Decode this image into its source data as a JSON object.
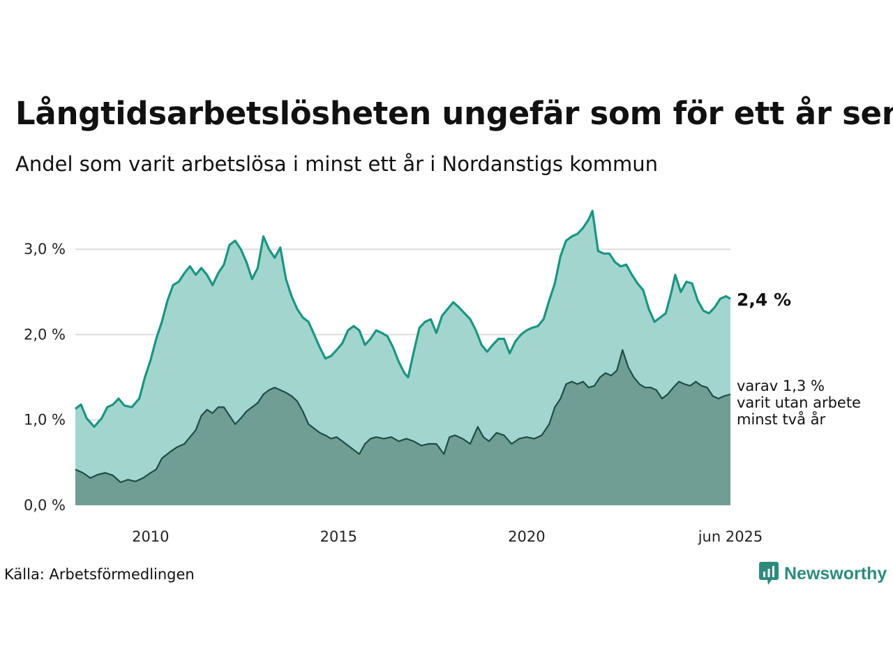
{
  "title": "Långtidsarbetslösheten ungefär som för ett år sen",
  "subtitle": "Andel som varit arbetslösa i minst ett år i Nordanstigs kommun",
  "source": "Källa: Arbetsförmedlingen",
  "brand": "Newsworthy",
  "colors": {
    "total_line": "#1a9580",
    "total_fill": "#a3d5cf",
    "two_year_line": "#1e4d44",
    "two_year_fill": "#6f9e95",
    "grid": "#dddddd",
    "brand": "#2e8b7c"
  },
  "chart_data": {
    "type": "area",
    "x_start": "2008-01",
    "x_end": "2025-06",
    "xlim": [
      2008.0,
      2025.42
    ],
    "ylim": [
      0,
      3.5
    ],
    "x_ticks": [
      {
        "x": 2010,
        "label": "2010"
      },
      {
        "x": 2015,
        "label": "2015"
      },
      {
        "x": 2020,
        "label": "2020"
      },
      {
        "x": 2025.42,
        "label": "jun 2025"
      }
    ],
    "y_ticks": [
      {
        "y": 0,
        "label": "0,0 %"
      },
      {
        "y": 1,
        "label": "1,0 %"
      },
      {
        "y": 2,
        "label": "2,0 %"
      },
      {
        "y": 3,
        "label": "3,0 %"
      }
    ],
    "grid": true,
    "series": [
      {
        "key": "total",
        "end_label": "2,4 %",
        "points": [
          [
            2008.0,
            1.13
          ],
          [
            2008.15,
            1.18
          ],
          [
            2008.3,
            1.02
          ],
          [
            2008.5,
            0.92
          ],
          [
            2008.7,
            1.02
          ],
          [
            2008.85,
            1.15
          ],
          [
            2009.0,
            1.18
          ],
          [
            2009.15,
            1.25
          ],
          [
            2009.3,
            1.17
          ],
          [
            2009.5,
            1.15
          ],
          [
            2009.7,
            1.25
          ],
          [
            2009.85,
            1.5
          ],
          [
            2010.0,
            1.7
          ],
          [
            2010.15,
            1.95
          ],
          [
            2010.3,
            2.15
          ],
          [
            2010.45,
            2.4
          ],
          [
            2010.6,
            2.58
          ],
          [
            2010.75,
            2.62
          ],
          [
            2010.9,
            2.72
          ],
          [
            2011.05,
            2.8
          ],
          [
            2011.2,
            2.7
          ],
          [
            2011.35,
            2.78
          ],
          [
            2011.5,
            2.7
          ],
          [
            2011.65,
            2.58
          ],
          [
            2011.8,
            2.72
          ],
          [
            2011.95,
            2.82
          ],
          [
            2012.1,
            3.05
          ],
          [
            2012.25,
            3.1
          ],
          [
            2012.4,
            3.0
          ],
          [
            2012.55,
            2.85
          ],
          [
            2012.7,
            2.65
          ],
          [
            2012.85,
            2.78
          ],
          [
            2013.0,
            3.15
          ],
          [
            2013.15,
            3.0
          ],
          [
            2013.3,
            2.9
          ],
          [
            2013.45,
            3.02
          ],
          [
            2013.6,
            2.65
          ],
          [
            2013.75,
            2.45
          ],
          [
            2013.9,
            2.3
          ],
          [
            2014.05,
            2.2
          ],
          [
            2014.2,
            2.15
          ],
          [
            2014.35,
            2.0
          ],
          [
            2014.5,
            1.85
          ],
          [
            2014.65,
            1.72
          ],
          [
            2014.8,
            1.75
          ],
          [
            2014.95,
            1.82
          ],
          [
            2015.1,
            1.9
          ],
          [
            2015.25,
            2.05
          ],
          [
            2015.4,
            2.1
          ],
          [
            2015.55,
            2.05
          ],
          [
            2015.7,
            1.88
          ],
          [
            2015.85,
            1.95
          ],
          [
            2016.0,
            2.05
          ],
          [
            2016.15,
            2.02
          ],
          [
            2016.3,
            1.98
          ],
          [
            2016.45,
            1.85
          ],
          [
            2016.6,
            1.68
          ],
          [
            2016.75,
            1.55
          ],
          [
            2016.85,
            1.5
          ],
          [
            2017.0,
            1.8
          ],
          [
            2017.15,
            2.08
          ],
          [
            2017.3,
            2.15
          ],
          [
            2017.45,
            2.18
          ],
          [
            2017.6,
            2.02
          ],
          [
            2017.75,
            2.22
          ],
          [
            2017.9,
            2.3
          ],
          [
            2018.05,
            2.38
          ],
          [
            2018.2,
            2.32
          ],
          [
            2018.35,
            2.25
          ],
          [
            2018.5,
            2.18
          ],
          [
            2018.65,
            2.05
          ],
          [
            2018.8,
            1.88
          ],
          [
            2018.95,
            1.8
          ],
          [
            2019.1,
            1.88
          ],
          [
            2019.25,
            1.95
          ],
          [
            2019.4,
            1.95
          ],
          [
            2019.55,
            1.78
          ],
          [
            2019.7,
            1.92
          ],
          [
            2019.85,
            2.0
          ],
          [
            2020.0,
            2.05
          ],
          [
            2020.15,
            2.08
          ],
          [
            2020.3,
            2.1
          ],
          [
            2020.45,
            2.18
          ],
          [
            2020.6,
            2.4
          ],
          [
            2020.75,
            2.6
          ],
          [
            2020.9,
            2.92
          ],
          [
            2021.05,
            3.1
          ],
          [
            2021.2,
            3.15
          ],
          [
            2021.35,
            3.18
          ],
          [
            2021.5,
            3.25
          ],
          [
            2021.65,
            3.35
          ],
          [
            2021.75,
            3.45
          ],
          [
            2021.9,
            2.98
          ],
          [
            2022.05,
            2.95
          ],
          [
            2022.2,
            2.95
          ],
          [
            2022.35,
            2.85
          ],
          [
            2022.5,
            2.8
          ],
          [
            2022.65,
            2.82
          ],
          [
            2022.8,
            2.7
          ],
          [
            2022.95,
            2.6
          ],
          [
            2023.1,
            2.52
          ],
          [
            2023.25,
            2.3
          ],
          [
            2023.4,
            2.15
          ],
          [
            2023.55,
            2.2
          ],
          [
            2023.7,
            2.25
          ],
          [
            2023.85,
            2.5
          ],
          [
            2023.95,
            2.7
          ],
          [
            2024.1,
            2.5
          ],
          [
            2024.25,
            2.62
          ],
          [
            2024.4,
            2.6
          ],
          [
            2024.55,
            2.4
          ],
          [
            2024.7,
            2.28
          ],
          [
            2024.85,
            2.25
          ],
          [
            2025.0,
            2.32
          ],
          [
            2025.15,
            2.42
          ],
          [
            2025.3,
            2.45
          ],
          [
            2025.42,
            2.42
          ]
        ]
      },
      {
        "key": "two_year",
        "end_label": [
          "varav 1,3 %",
          "varit utan arbete",
          "minst två år"
        ],
        "points": [
          [
            2008.0,
            0.42
          ],
          [
            2008.2,
            0.38
          ],
          [
            2008.4,
            0.32
          ],
          [
            2008.6,
            0.36
          ],
          [
            2008.8,
            0.38
          ],
          [
            2009.0,
            0.35
          ],
          [
            2009.2,
            0.27
          ],
          [
            2009.4,
            0.3
          ],
          [
            2009.6,
            0.28
          ],
          [
            2009.8,
            0.32
          ],
          [
            2010.0,
            0.38
          ],
          [
            2010.15,
            0.42
          ],
          [
            2010.3,
            0.55
          ],
          [
            2010.5,
            0.62
          ],
          [
            2010.7,
            0.68
          ],
          [
            2010.9,
            0.72
          ],
          [
            2011.05,
            0.8
          ],
          [
            2011.2,
            0.88
          ],
          [
            2011.35,
            1.05
          ],
          [
            2011.5,
            1.12
          ],
          [
            2011.65,
            1.08
          ],
          [
            2011.8,
            1.15
          ],
          [
            2011.95,
            1.15
          ],
          [
            2012.1,
            1.05
          ],
          [
            2012.25,
            0.95
          ],
          [
            2012.4,
            1.02
          ],
          [
            2012.55,
            1.1
          ],
          [
            2012.7,
            1.15
          ],
          [
            2012.85,
            1.2
          ],
          [
            2013.0,
            1.3
          ],
          [
            2013.15,
            1.35
          ],
          [
            2013.3,
            1.38
          ],
          [
            2013.45,
            1.35
          ],
          [
            2013.6,
            1.32
          ],
          [
            2013.75,
            1.28
          ],
          [
            2013.9,
            1.22
          ],
          [
            2014.05,
            1.1
          ],
          [
            2014.2,
            0.95
          ],
          [
            2014.35,
            0.9
          ],
          [
            2014.5,
            0.85
          ],
          [
            2014.65,
            0.82
          ],
          [
            2014.8,
            0.78
          ],
          [
            2014.95,
            0.8
          ],
          [
            2015.1,
            0.75
          ],
          [
            2015.25,
            0.7
          ],
          [
            2015.4,
            0.65
          ],
          [
            2015.55,
            0.6
          ],
          [
            2015.7,
            0.72
          ],
          [
            2015.85,
            0.78
          ],
          [
            2016.0,
            0.8
          ],
          [
            2016.2,
            0.78
          ],
          [
            2016.4,
            0.8
          ],
          [
            2016.6,
            0.75
          ],
          [
            2016.8,
            0.78
          ],
          [
            2017.0,
            0.75
          ],
          [
            2017.2,
            0.7
          ],
          [
            2017.4,
            0.72
          ],
          [
            2017.6,
            0.72
          ],
          [
            2017.8,
            0.6
          ],
          [
            2017.95,
            0.8
          ],
          [
            2018.1,
            0.82
          ],
          [
            2018.3,
            0.78
          ],
          [
            2018.5,
            0.72
          ],
          [
            2018.7,
            0.92
          ],
          [
            2018.85,
            0.8
          ],
          [
            2019.0,
            0.75
          ],
          [
            2019.2,
            0.85
          ],
          [
            2019.4,
            0.82
          ],
          [
            2019.6,
            0.72
          ],
          [
            2019.8,
            0.78
          ],
          [
            2020.0,
            0.8
          ],
          [
            2020.2,
            0.78
          ],
          [
            2020.4,
            0.82
          ],
          [
            2020.6,
            0.95
          ],
          [
            2020.75,
            1.15
          ],
          [
            2020.9,
            1.25
          ],
          [
            2021.05,
            1.42
          ],
          [
            2021.2,
            1.45
          ],
          [
            2021.35,
            1.42
          ],
          [
            2021.5,
            1.45
          ],
          [
            2021.65,
            1.38
          ],
          [
            2021.8,
            1.4
          ],
          [
            2021.95,
            1.5
          ],
          [
            2022.1,
            1.55
          ],
          [
            2022.25,
            1.52
          ],
          [
            2022.4,
            1.58
          ],
          [
            2022.55,
            1.82
          ],
          [
            2022.7,
            1.62
          ],
          [
            2022.85,
            1.5
          ],
          [
            2023.0,
            1.42
          ],
          [
            2023.15,
            1.38
          ],
          [
            2023.3,
            1.38
          ],
          [
            2023.45,
            1.35
          ],
          [
            2023.6,
            1.25
          ],
          [
            2023.75,
            1.3
          ],
          [
            2023.9,
            1.38
          ],
          [
            2024.05,
            1.45
          ],
          [
            2024.2,
            1.42
          ],
          [
            2024.35,
            1.4
          ],
          [
            2024.5,
            1.45
          ],
          [
            2024.65,
            1.4
          ],
          [
            2024.8,
            1.38
          ],
          [
            2024.95,
            1.28
          ],
          [
            2025.1,
            1.25
          ],
          [
            2025.25,
            1.28
          ],
          [
            2025.42,
            1.3
          ]
        ]
      }
    ]
  }
}
